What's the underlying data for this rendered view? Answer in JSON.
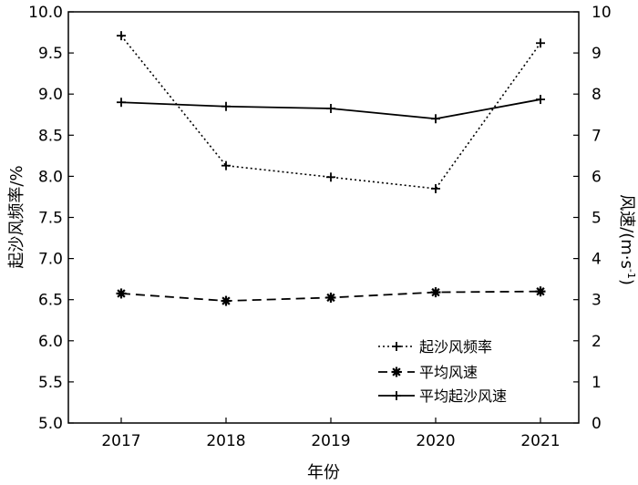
{
  "chart_data": {
    "type": "line",
    "x": [
      2017,
      2018,
      2019,
      2020,
      2021
    ],
    "xlabel": "年份",
    "ylabel_left": "起沙风频率/%",
    "ylabel_right": "风速/(m·s",
    "ylabel_right_exp": "-1",
    "ylabel_right_close": ")",
    "ylim_left": [
      5.0,
      10.0
    ],
    "ylim_right": [
      0,
      10
    ],
    "yticks_left": [
      "5.0",
      "5.5",
      "6.0",
      "6.5",
      "7.0",
      "7.5",
      "8.0",
      "8.5",
      "9.0",
      "9.5",
      "10.0"
    ],
    "yticks_right": [
      "0",
      "1",
      "2",
      "3",
      "4",
      "5",
      "6",
      "7",
      "8",
      "9",
      "10"
    ],
    "xticks": [
      "2017",
      "2018",
      "2019",
      "2020",
      "2021"
    ],
    "grid": false,
    "legend_position": "lower-right",
    "series": [
      {
        "name": "起沙风频率",
        "axis": "left",
        "values": [
          9.71,
          8.13,
          7.99,
          7.85,
          9.62
        ],
        "line_style": "dotted",
        "marker": "plus"
      },
      {
        "name": "平均风速",
        "axis": "right",
        "values": [
          3.15,
          2.97,
          3.05,
          3.18,
          3.2
        ],
        "line_style": "dashed",
        "marker": "asterisk"
      },
      {
        "name": "平均起沙风速",
        "axis": "right",
        "values": [
          7.8,
          7.7,
          7.65,
          7.4,
          7.87
        ],
        "line_style": "solid",
        "marker": "plus"
      }
    ]
  }
}
